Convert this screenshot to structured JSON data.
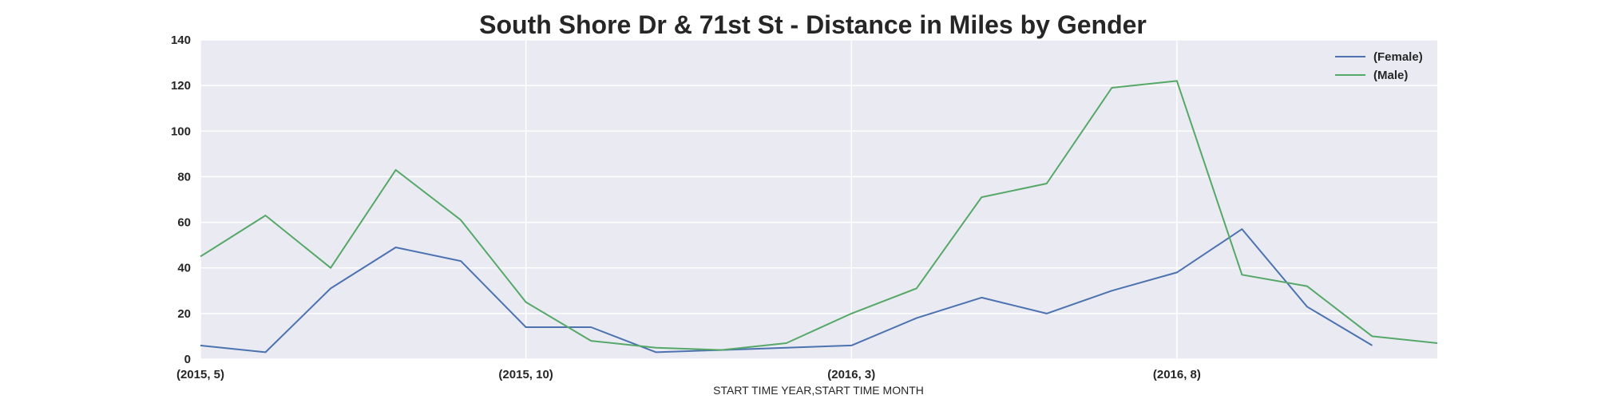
{
  "chart_data": {
    "type": "line",
    "title": "South Shore Dr & 71st St - Distance in Miles by Gender",
    "xlabel": "START TIME YEAR,START TIME MONTH",
    "ylabel": "",
    "categories": [
      "(2015, 5)",
      "(2015, 6)",
      "(2015, 7)",
      "(2015, 8)",
      "(2015, 9)",
      "(2015, 10)",
      "(2015, 11)",
      "(2015, 12)",
      "(2016, 1)",
      "(2016, 2)",
      "(2016, 3)",
      "(2016, 4)",
      "(2016, 5)",
      "(2016, 6)",
      "(2016, 7)",
      "(2016, 8)",
      "(2016, 9)",
      "(2016, 10)",
      "(2016, 11)",
      "(2016, 12)"
    ],
    "x_tick_labels": [
      "(2015, 5)",
      "(2015, 10)",
      "(2016, 3)",
      "(2016, 8)"
    ],
    "ylim": [
      0,
      140
    ],
    "y_ticks": [
      0,
      20,
      40,
      60,
      80,
      100,
      120,
      140
    ],
    "grid": true,
    "legend_position": "top-right",
    "series": [
      {
        "name": "(Female)",
        "color": "#4c72b0",
        "values": [
          6,
          3,
          31,
          49,
          43,
          14,
          14,
          3,
          4,
          5,
          6,
          18,
          27,
          20,
          30,
          38,
          57,
          23,
          6,
          null
        ]
      },
      {
        "name": "(Male)",
        "color": "#55a868",
        "values": [
          45,
          63,
          40,
          83,
          61,
          25,
          8,
          5,
          4,
          7,
          20,
          31,
          71,
          77,
          119,
          122,
          37,
          32,
          10,
          7
        ]
      }
    ],
    "background_color": "#eaeaf2",
    "grid_color": "#ffffff"
  }
}
